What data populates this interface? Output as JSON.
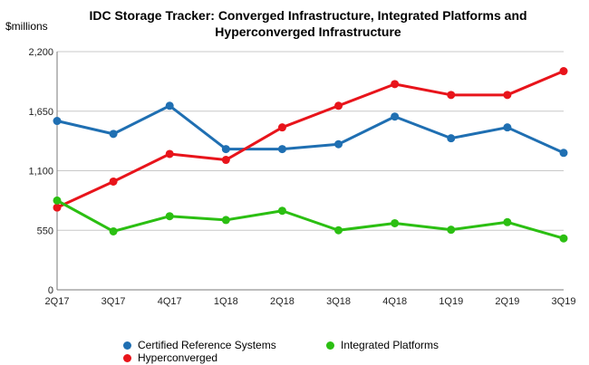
{
  "chart_data": {
    "type": "line",
    "title_line1": "IDC Storage Tracker: Converged Infrastructure, Integrated Platforms and",
    "title_line2": "Hyperconverged Infrastructure",
    "ylabel": "$millions",
    "xlabel": "",
    "categories": [
      "2Q17",
      "3Q17",
      "4Q17",
      "1Q18",
      "2Q18",
      "3Q18",
      "4Q18",
      "1Q19",
      "2Q19",
      "3Q19"
    ],
    "ylim": [
      0,
      2200
    ],
    "yticks": [
      0,
      550,
      1100,
      1650,
      2200
    ],
    "ytick_labels": [
      "0",
      "550",
      "1,100",
      "1,650",
      "2,200"
    ],
    "grid": true,
    "legend_position": "bottom",
    "series": [
      {
        "name": "Certified Reference Systems",
        "color": "#1f6fb2",
        "values": [
          1560,
          1440,
          1700,
          1300,
          1300,
          1345,
          1600,
          1400,
          1500,
          1265
        ]
      },
      {
        "name": "Hyperconverged",
        "color": "#e8141b",
        "values": [
          760,
          1000,
          1255,
          1200,
          1500,
          1700,
          1900,
          1800,
          1800,
          2020
        ]
      },
      {
        "name": "Integrated Platforms",
        "color": "#2bbf12",
        "values": [
          825,
          540,
          680,
          645,
          730,
          550,
          615,
          555,
          625,
          475
        ]
      }
    ]
  }
}
